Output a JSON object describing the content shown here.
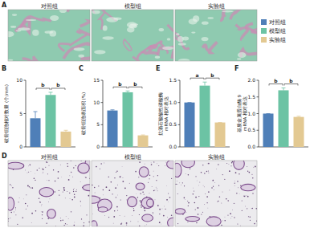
{
  "groups": [
    {
      "name": "对照组",
      "color": "#4f7fb8"
    },
    {
      "name": "模型组",
      "color": "#6cc3a4"
    },
    {
      "name": "实验组",
      "color": "#e3c992"
    }
  ],
  "image_panels": [
    {
      "panel": "A",
      "captions": [
        "对照组",
        "模型组",
        "实验组"
      ]
    },
    {
      "panel": "D",
      "captions": [
        "对照组",
        "模型组",
        "实验组"
      ]
    }
  ],
  "chart_data": [
    {
      "type": "bar",
      "panel": "B",
      "y_label": [
        "破骨细胞相对数量 (个/mm)"
      ],
      "values": [
        4.3,
        7.8,
        2.3
      ],
      "errors": [
        1.0,
        0.4,
        0.2
      ],
      "ylim": [
        0,
        10
      ],
      "yticks": [
        0,
        5,
        10
      ],
      "tick_labels": "y",
      "significance": [
        {
          "from": 0,
          "to": 1,
          "label": "b"
        },
        {
          "from": 1,
          "to": 2,
          "label": "b"
        }
      ]
    },
    {
      "type": "bar",
      "panel": "C",
      "y_label": [
        "破骨细胞表面积 (%)"
      ],
      "values": [
        8.2,
        12.3,
        2.6
      ],
      "errors": [
        0.15,
        0.3,
        0.1
      ],
      "ylim": [
        0,
        15
      ],
      "yticks": [
        0,
        5,
        10,
        15
      ],
      "tick_labels": "y",
      "significance": [
        {
          "from": 0,
          "to": 1,
          "label": "b"
        },
        {
          "from": 1,
          "to": 2,
          "label": "b"
        }
      ]
    },
    {
      "type": "bar",
      "panel": "E",
      "y_label": [
        "抗酒石酸酸性磷酸酶",
        "mRNA 相对表达"
      ],
      "values": [
        1.0,
        1.38,
        0.55
      ],
      "errors": [
        0,
        0.08,
        0
      ],
      "ylim": [
        0,
        1.5
      ],
      "yticks": [
        {
          "value": 0,
          "label": "0.0"
        },
        0.5,
        {
          "value": 1,
          "label": "1.0"
        },
        1.5
      ],
      "tick_labels": "y",
      "significance": [
        {
          "from": 0,
          "to": 1,
          "label": "a"
        },
        {
          "from": 1,
          "to": 2,
          "label": "b"
        }
      ]
    },
    {
      "type": "bar",
      "panel": "F",
      "y_label": [
        "基质金属蛋白酶 9",
        "mRNA 相对表达"
      ],
      "values": [
        1.0,
        1.7,
        0.9
      ],
      "errors": [
        0,
        0.07,
        0.02
      ],
      "ylim": [
        0,
        2
      ],
      "yticks": [
        {
          "value": 0,
          "label": "0.0"
        },
        0.5,
        {
          "value": 1,
          "label": "1.0"
        },
        1.5,
        {
          "value": 2,
          "label": "2.0"
        }
      ],
      "tick_labels": "y",
      "significance": [
        {
          "from": 0,
          "to": 1,
          "label": "b"
        },
        {
          "from": 1,
          "to": 2,
          "label": "b"
        }
      ]
    }
  ]
}
